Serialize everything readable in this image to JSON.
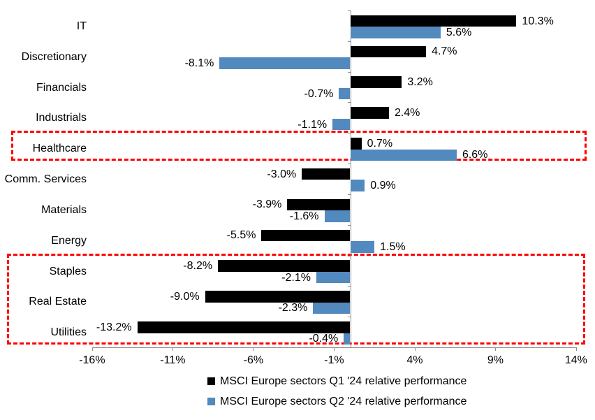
{
  "chart_data": {
    "type": "bar",
    "orientation": "horizontal",
    "title": "",
    "categories": [
      "IT",
      "Discretionary",
      "Financials",
      "Industrials",
      "Healthcare",
      "Comm. Services",
      "Materials",
      "Energy",
      "Staples",
      "Real Estate",
      "Utilities"
    ],
    "series": [
      {
        "name": "MSCI Europe sectors Q1 '24 relative performance",
        "color": "#000000",
        "values": [
          10.3,
          4.7,
          3.2,
          2.4,
          0.7,
          -3.0,
          -3.9,
          -5.5,
          -8.2,
          -9.0,
          -13.2
        ],
        "labels": [
          "10.3%",
          "4.7%",
          "3.2%",
          "2.4%",
          "0.7%",
          "-3.0%",
          "-3.9%",
          "-5.5%",
          "-8.2%",
          "-9.0%",
          "-13.2%"
        ]
      },
      {
        "name": "MSCI Europe sectors Q2 '24 relative performance",
        "color": "#5289be",
        "values": [
          5.6,
          -8.1,
          -0.7,
          -1.1,
          6.6,
          0.9,
          -1.6,
          1.5,
          -2.1,
          -2.3,
          -0.4
        ],
        "labels": [
          "5.6%",
          "-8.1%",
          "-0.7%",
          "-1.1%",
          "6.6%",
          "0.9%",
          "-1.6%",
          "1.5%",
          "-2.1%",
          "-2.3%",
          "-0.4%"
        ]
      }
    ],
    "xlim": [
      -16,
      14
    ],
    "x_ticks": [
      {
        "value": -16,
        "label": "-16%"
      },
      {
        "value": -11,
        "label": "-11%"
      },
      {
        "value": -6,
        "label": "-6%"
      },
      {
        "value": -1,
        "label": "-1%"
      },
      {
        "value": 4,
        "label": "4%"
      },
      {
        "value": 9,
        "label": "9%"
      },
      {
        "value": 14,
        "label": "14%"
      }
    ],
    "grid": false,
    "legend_position": "bottom",
    "value_format": "one-decimal-percent",
    "highlight_color": "#ff0000",
    "highlights": [
      {
        "name": "healthcare-highlight",
        "first_row": 4,
        "last_row": 4
      },
      {
        "name": "defensives-highlight",
        "first_row": 8,
        "last_row": 10
      }
    ]
  }
}
